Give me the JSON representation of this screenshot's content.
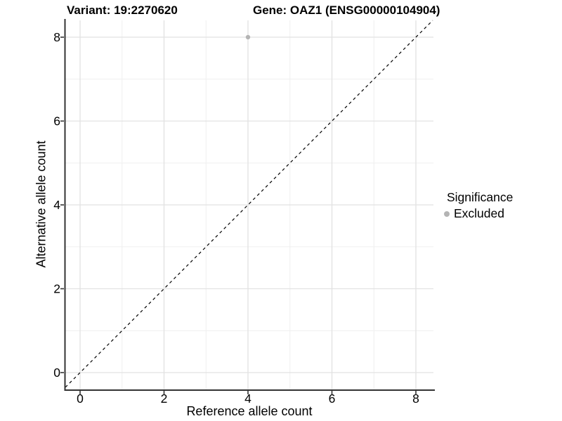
{
  "title": {
    "left": "Variant: 19:2270620",
    "right": "Gene: OAZ1 (ENSG00000104904)"
  },
  "chart_data": {
    "type": "scatter",
    "title": "Variant: 19:2270620        Gene: OAZ1 (ENSG00000104904)",
    "xlabel": "Reference allele count",
    "ylabel": "Alternative allele count",
    "xlim": [
      -0.4,
      8.4
    ],
    "ylim": [
      -0.4,
      8.4
    ],
    "x_ticks": [
      0,
      2,
      4,
      6,
      8
    ],
    "y_ticks": [
      0,
      2,
      4,
      6,
      8
    ],
    "x_minor_ticks": [
      1,
      3,
      5,
      7
    ],
    "y_minor_ticks": [
      1,
      3,
      5,
      7
    ],
    "grid": "on",
    "series": [
      {
        "name": "Excluded",
        "type": "scatter",
        "color": "#b4b4b4",
        "points": [
          [
            4,
            8
          ]
        ]
      }
    ],
    "annotations": [
      {
        "type": "reference-line",
        "equation": "y = x",
        "style": "dashed",
        "color": "#000000"
      }
    ],
    "legend": {
      "title": "Significance",
      "position": "right",
      "entries": [
        {
          "label": "Excluded",
          "color": "#b4b4b4",
          "marker": "circle"
        }
      ]
    }
  },
  "colors": {
    "background": "#ffffff",
    "grid_major": "#e2e2e2",
    "grid_minor": "#efefef",
    "axis_line": "#333333",
    "tick_mark": "#333333",
    "text": "#000000"
  }
}
